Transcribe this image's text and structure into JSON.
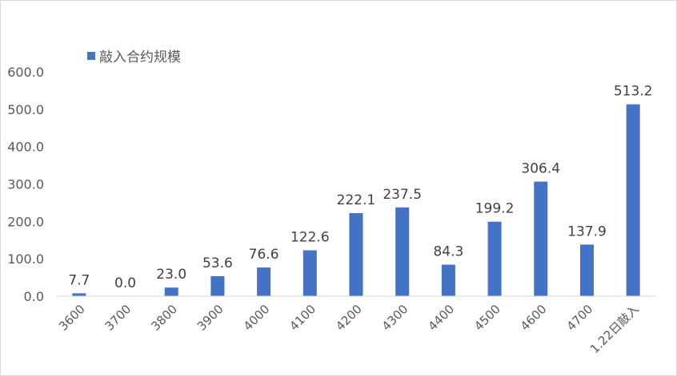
{
  "chart_data": {
    "type": "bar",
    "title": "",
    "xlabel": "",
    "ylabel": "",
    "categories": [
      "3600",
      "3700",
      "3800",
      "3900",
      "4000",
      "4100",
      "4200",
      "4300",
      "4400",
      "4500",
      "4600",
      "4700",
      "1.22日敲入"
    ],
    "series": [
      {
        "name": "敲入合约规模",
        "values": [
          7.7,
          0.0,
          23.0,
          53.6,
          76.6,
          122.6,
          222.1,
          237.5,
          84.3,
          199.2,
          306.4,
          137.9,
          513.2
        ],
        "color": "#4472c4"
      }
    ],
    "ylim": [
      0,
      600
    ],
    "yticks": [
      "0.0",
      "100.0",
      "200.0",
      "300.0",
      "400.0",
      "500.0",
      "600.0"
    ],
    "data_labels": [
      "7.7",
      "0.0",
      "23.0",
      "53.6",
      "76.6",
      "122.6",
      "222.1",
      "237.5",
      "84.3",
      "199.2",
      "306.4",
      "137.9",
      "513.2"
    ],
    "grid": false,
    "legend_position": "top-left"
  }
}
